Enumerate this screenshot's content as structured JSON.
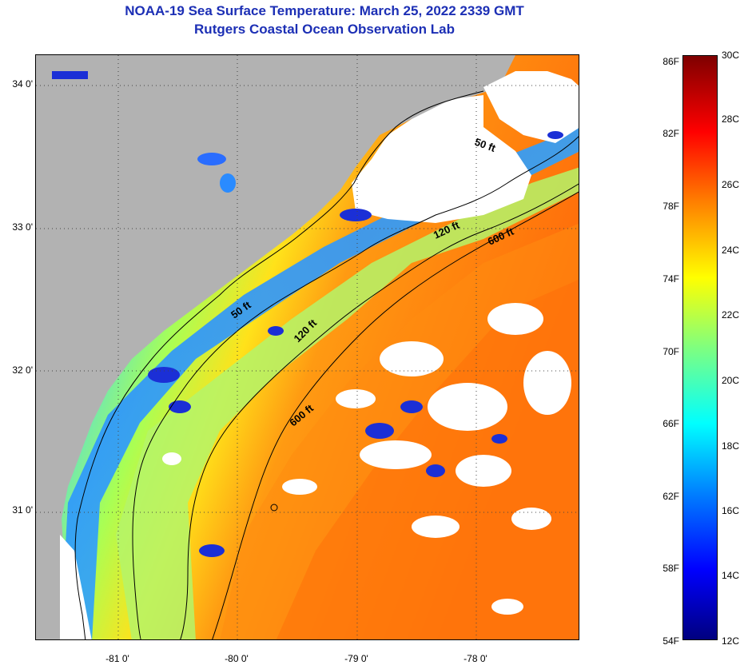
{
  "header": {
    "title": "NOAA-19 Sea Surface Temperature:  March 25, 2022 2339 GMT",
    "subtitle": "Rutgers Coastal Ocean Observation Lab"
  },
  "map": {
    "latitude_labels": [
      {
        "lat": 34.0,
        "label": "34 0'"
      },
      {
        "lat": 33.0,
        "label": "33 0'"
      },
      {
        "lat": 32.0,
        "label": "32 0'"
      },
      {
        "lat": 31.0,
        "label": "31 0'"
      }
    ],
    "longitude_labels": [
      {
        "lon": -81.0,
        "label": "-81 0'"
      },
      {
        "lon": -80.0,
        "label": "-80 0'"
      },
      {
        "lon": -79.0,
        "label": "-79 0'"
      },
      {
        "lon": -78.0,
        "label": "-78 0'"
      }
    ],
    "isobath_labels": [
      "50 ft",
      "120 ft",
      "600 ft",
      "50 ft",
      "120 ft",
      "600 ft"
    ],
    "colors": {
      "land": "#b2b2b2",
      "cloud": "#ffffff",
      "coastline": "#000000",
      "gridline": "#555555"
    }
  },
  "colorbar": {
    "fahrenheit_labels": [
      "86F",
      "82F",
      "78F",
      "74F",
      "70F",
      "66F",
      "62F",
      "58F",
      "54F"
    ],
    "celsius_labels": [
      "30C",
      "28C",
      "26C",
      "24C",
      "22C",
      "20C",
      "18C",
      "16C",
      "14C",
      "12C"
    ],
    "range_c": [
      12,
      30
    ],
    "palette": [
      "#00007f",
      "#0000ff",
      "#007fff",
      "#00ffff",
      "#7fff7f",
      "#ffff00",
      "#ff7f00",
      "#ff0000",
      "#7f0000"
    ]
  }
}
